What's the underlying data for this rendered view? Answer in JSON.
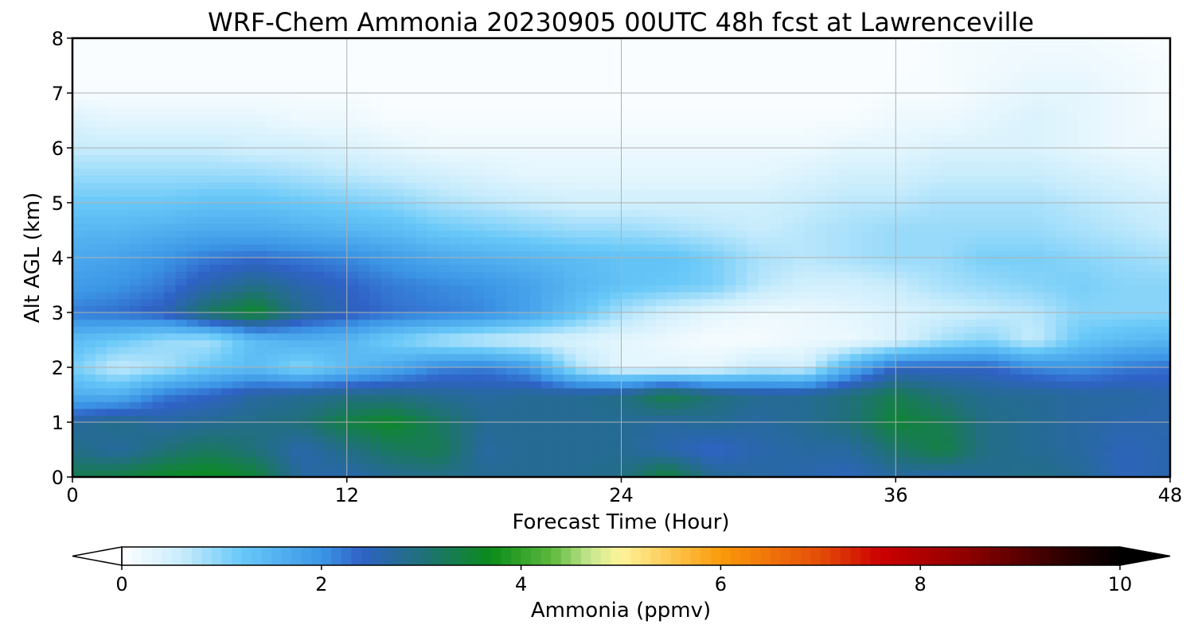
{
  "chart_data": {
    "type": "heatmap",
    "title": "WRF-Chem Ammonia  20230905 00UTC 48h fcst at Lawrenceville",
    "xlabel": "Forecast Time (Hour)",
    "ylabel": "Alt AGL (km)",
    "xlim": [
      0,
      48
    ],
    "ylim": [
      0,
      8
    ],
    "xticks": [
      "0",
      "12",
      "24",
      "36",
      "48"
    ],
    "yticks": [
      "0",
      "1",
      "2",
      "3",
      "4",
      "5",
      "6",
      "7",
      "8"
    ],
    "grid": true,
    "colorbar": {
      "label": "Ammonia  (ppmv)",
      "range": [
        0,
        10
      ],
      "ticks": [
        "0",
        "2",
        "4",
        "6",
        "8",
        "10"
      ],
      "extend": "both",
      "under_color": "#ffffff",
      "over_color": "#000000",
      "stops": [
        {
          "v": 0.0,
          "c": "#ffffff"
        },
        {
          "v": 0.6,
          "c": "#c8ecfc"
        },
        {
          "v": 1.2,
          "c": "#68c8f8"
        },
        {
          "v": 2.0,
          "c": "#3c96e6"
        },
        {
          "v": 2.4,
          "c": "#2f62c6"
        },
        {
          "v": 3.0,
          "c": "#20707a"
        },
        {
          "v": 3.7,
          "c": "#0a8c1a"
        },
        {
          "v": 4.3,
          "c": "#5cb83c"
        },
        {
          "v": 4.7,
          "c": "#c8e890"
        },
        {
          "v": 5.0,
          "c": "#fff49a"
        },
        {
          "v": 6.0,
          "c": "#fa9a0a"
        },
        {
          "v": 7.0,
          "c": "#e44c08"
        },
        {
          "v": 7.6,
          "c": "#cc0000"
        },
        {
          "v": 8.5,
          "c": "#8c0000"
        },
        {
          "v": 9.5,
          "c": "#280000"
        },
        {
          "v": 10.0,
          "c": "#000000"
        }
      ]
    },
    "x_hours": [
      0,
      2,
      4,
      6,
      8,
      10,
      12,
      14,
      16,
      18,
      20,
      22,
      24,
      26,
      28,
      30,
      32,
      34,
      36,
      38,
      40,
      42,
      44,
      46,
      48
    ],
    "z_km": [
      0,
      0.5,
      1,
      1.5,
      2,
      2.5,
      3,
      3.5,
      4,
      4.5,
      5,
      5.5,
      6,
      6.5,
      7,
      7.5,
      8
    ],
    "values_ppmv": [
      [
        3.3,
        3.4,
        3.6,
        3.7,
        3.5,
        2.7,
        2.6,
        2.8,
        2.9,
        2.8,
        2.8,
        2.8,
        2.9,
        3.5,
        2.8,
        2.7,
        2.6,
        2.5,
        2.7,
        2.6,
        2.8,
        2.9,
        2.8,
        2.5,
        2.6
      ],
      [
        2.9,
        2.7,
        3.0,
        3.2,
        3.0,
        2.6,
        2.9,
        3.2,
        3.3,
        2.7,
        2.8,
        2.8,
        2.8,
        2.6,
        2.4,
        2.6,
        2.7,
        2.7,
        3.1,
        3.4,
        2.9,
        2.8,
        2.7,
        2.5,
        2.6
      ],
      [
        2.7,
        2.9,
        2.7,
        2.8,
        2.9,
        3.0,
        3.4,
        3.6,
        3.2,
        2.8,
        2.8,
        2.8,
        2.8,
        2.7,
        2.8,
        2.7,
        2.8,
        3.0,
        3.5,
        3.3,
        2.9,
        2.8,
        2.7,
        2.6,
        2.6
      ],
      [
        1.6,
        1.6,
        2.2,
        2.4,
        2.7,
        2.8,
        2.9,
        2.9,
        2.8,
        2.7,
        2.8,
        2.8,
        2.9,
        3.4,
        3.0,
        2.8,
        2.8,
        3.0,
        3.3,
        3.0,
        2.8,
        2.8,
        2.7,
        2.7,
        2.6
      ],
      [
        1.1,
        0.6,
        0.8,
        1.2,
        1.4,
        1.0,
        1.4,
        1.7,
        2.1,
        2.2,
        1.9,
        0.8,
        0.3,
        0.3,
        0.3,
        0.6,
        0.5,
        1.6,
        2.4,
        2.4,
        2.4,
        2.1,
        2.0,
        2.2,
        2.3
      ],
      [
        1.4,
        1.2,
        0.9,
        0.8,
        1.4,
        1.6,
        1.5,
        1.1,
        0.8,
        0.6,
        0.5,
        0.4,
        0.3,
        0.2,
        0.1,
        0.1,
        0.2,
        0.2,
        0.4,
        0.8,
        1.0,
        0.6,
        1.2,
        1.4,
        1.5
      ],
      [
        2.2,
        2.3,
        2.5,
        3.2,
        3.6,
        2.8,
        2.5,
        2.3,
        2.2,
        2.1,
        1.8,
        1.3,
        0.8,
        0.5,
        0.3,
        0.2,
        0.2,
        0.3,
        0.4,
        0.5,
        0.6,
        0.7,
        1.0,
        1.0,
        1.0
      ],
      [
        1.9,
        2.0,
        2.2,
        2.6,
        2.9,
        2.6,
        2.4,
        2.2,
        2.1,
        2.0,
        1.8,
        1.5,
        1.3,
        1.2,
        1.1,
        0.7,
        0.5,
        0.5,
        0.6,
        0.8,
        0.9,
        1.0,
        1.1,
        1.0,
        1.0
      ],
      [
        1.7,
        1.8,
        2.0,
        2.2,
        2.3,
        2.2,
        2.1,
        1.9,
        1.7,
        1.6,
        1.5,
        1.4,
        1.3,
        1.3,
        1.1,
        0.8,
        0.7,
        0.8,
        0.9,
        0.9,
        1.1,
        1.1,
        1.0,
        0.9,
        0.8
      ],
      [
        1.5,
        1.5,
        1.6,
        1.7,
        1.7,
        1.6,
        1.5,
        1.4,
        1.2,
        1.1,
        1.0,
        0.9,
        0.9,
        0.8,
        0.7,
        0.6,
        0.7,
        0.8,
        0.9,
        0.9,
        0.9,
        0.9,
        0.8,
        0.7,
        0.6
      ],
      [
        1.2,
        1.2,
        1.2,
        1.3,
        1.3,
        1.2,
        1.1,
        1.0,
        0.8,
        0.7,
        0.6,
        0.5,
        0.5,
        0.5,
        0.5,
        0.5,
        0.6,
        0.7,
        0.7,
        0.8,
        0.8,
        0.8,
        0.7,
        0.6,
        0.5
      ],
      [
        0.9,
        0.9,
        0.9,
        0.9,
        0.9,
        0.8,
        0.7,
        0.6,
        0.5,
        0.4,
        0.3,
        0.3,
        0.3,
        0.3,
        0.3,
        0.3,
        0.4,
        0.5,
        0.5,
        0.6,
        0.6,
        0.6,
        0.5,
        0.4,
        0.3
      ],
      [
        0.6,
        0.6,
        0.6,
        0.6,
        0.5,
        0.5,
        0.4,
        0.3,
        0.2,
        0.2,
        0.2,
        0.2,
        0.2,
        0.2,
        0.2,
        0.2,
        0.2,
        0.3,
        0.3,
        0.4,
        0.4,
        0.4,
        0.3,
        0.2,
        0.2
      ],
      [
        0.4,
        0.3,
        0.3,
        0.3,
        0.3,
        0.2,
        0.2,
        0.1,
        0.1,
        0.1,
        0.1,
        0.1,
        0.1,
        0.1,
        0.1,
        0.1,
        0.1,
        0.1,
        0.2,
        0.2,
        0.3,
        0.4,
        0.3,
        0.2,
        0.1
      ],
      [
        0.1,
        0.1,
        0.1,
        0.1,
        0.1,
        0.1,
        0.1,
        0.05,
        0.05,
        0.05,
        0.05,
        0.05,
        0.05,
        0.05,
        0.05,
        0.05,
        0.05,
        0.05,
        0.1,
        0.1,
        0.2,
        0.3,
        0.3,
        0.2,
        0.1
      ],
      [
        0.05,
        0.05,
        0.05,
        0.05,
        0.05,
        0.05,
        0.05,
        0.05,
        0.05,
        0.05,
        0.05,
        0.05,
        0.05,
        0.05,
        0.05,
        0.05,
        0.05,
        0.05,
        0.05,
        0.1,
        0.15,
        0.2,
        0.2,
        0.15,
        0.1
      ],
      [
        0.05,
        0.05,
        0.05,
        0.05,
        0.05,
        0.05,
        0.05,
        0.05,
        0.05,
        0.05,
        0.05,
        0.05,
        0.05,
        0.05,
        0.05,
        0.05,
        0.05,
        0.05,
        0.05,
        0.1,
        0.15,
        0.15,
        0.15,
        0.1,
        0.05
      ]
    ]
  }
}
